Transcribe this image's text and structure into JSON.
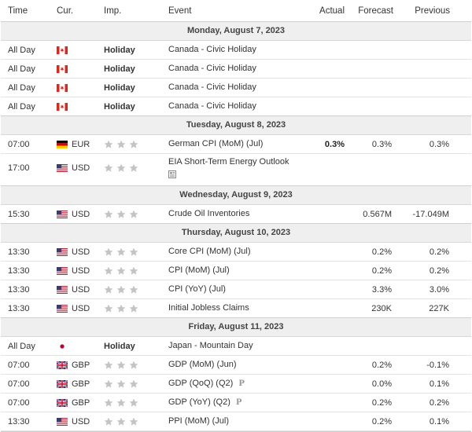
{
  "columns": {
    "time": "Time",
    "currency": "Cur.",
    "importance": "Imp.",
    "event": "Event",
    "actual": "Actual",
    "forecast": "Forecast",
    "previous": "Previous"
  },
  "colors": {
    "star_inactive": "#c4c4c4",
    "day_header_bg": "#efefef",
    "border": "#e3e3e3"
  },
  "days": [
    {
      "label": "Monday, August 7, 2023",
      "rows": [
        {
          "time": "All Day",
          "flag": "ca",
          "code": "",
          "holiday": "Holiday",
          "event": "Canada - Civic Holiday",
          "actual": "",
          "forecast": "",
          "previous": ""
        },
        {
          "time": "All Day",
          "flag": "ca",
          "code": "",
          "holiday": "Holiday",
          "event": "Canada - Civic Holiday",
          "actual": "",
          "forecast": "",
          "previous": ""
        },
        {
          "time": "All Day",
          "flag": "ca",
          "code": "",
          "holiday": "Holiday",
          "event": "Canada - Civic Holiday",
          "actual": "",
          "forecast": "",
          "previous": ""
        },
        {
          "time": "All Day",
          "flag": "ca",
          "code": "",
          "holiday": "Holiday",
          "event": "Canada - Civic Holiday",
          "actual": "",
          "forecast": "",
          "previous": ""
        }
      ]
    },
    {
      "label": "Tuesday, August 8, 2023",
      "rows": [
        {
          "time": "07:00",
          "flag": "de",
          "code": "EUR",
          "stars": 3,
          "event": "German CPI (MoM) (Jul)",
          "actual": "0.3%",
          "forecast": "0.3%",
          "previous": "0.3%"
        },
        {
          "time": "17:00",
          "flag": "us",
          "code": "USD",
          "stars": 3,
          "event": "EIA Short-Term Energy Outlook",
          "doc_icon": "document-icon",
          "tall": true,
          "actual": "",
          "forecast": "",
          "previous": ""
        }
      ]
    },
    {
      "label": "Wednesday, August 9, 2023",
      "rows": [
        {
          "time": "15:30",
          "flag": "us",
          "code": "USD",
          "stars": 3,
          "event": "Crude Oil Inventories",
          "actual": "",
          "forecast": "0.567M",
          "previous": "-17.049M"
        }
      ]
    },
    {
      "label": "Thursday, August 10, 2023",
      "rows": [
        {
          "time": "13:30",
          "flag": "us",
          "code": "USD",
          "stars": 3,
          "event": "Core CPI (MoM) (Jul)",
          "actual": "",
          "forecast": "0.2%",
          "previous": "0.2%"
        },
        {
          "time": "13:30",
          "flag": "us",
          "code": "USD",
          "stars": 3,
          "event": "CPI (MoM) (Jul)",
          "actual": "",
          "forecast": "0.2%",
          "previous": "0.2%"
        },
        {
          "time": "13:30",
          "flag": "us",
          "code": "USD",
          "stars": 3,
          "event": "CPI (YoY) (Jul)",
          "actual": "",
          "forecast": "3.3%",
          "previous": "3.0%"
        },
        {
          "time": "13:30",
          "flag": "us",
          "code": "USD",
          "stars": 3,
          "event": "Initial Jobless Claims",
          "actual": "",
          "forecast": "230K",
          "previous": "227K"
        }
      ]
    },
    {
      "label": "Friday, August 11, 2023",
      "rows": [
        {
          "time": "All Day",
          "flag": "jp",
          "code": "",
          "holiday": "Holiday",
          "event": "Japan - Mountain Day",
          "actual": "",
          "forecast": "",
          "previous": ""
        },
        {
          "time": "07:00",
          "flag": "gb",
          "code": "GBP",
          "stars": 3,
          "event": "GDP (MoM) (Jun)",
          "actual": "",
          "forecast": "0.2%",
          "previous": "-0.1%"
        },
        {
          "time": "07:00",
          "flag": "gb",
          "code": "GBP",
          "stars": 3,
          "event": "GDP (QoQ) (Q2)",
          "prelim": "P",
          "actual": "",
          "forecast": "0.0%",
          "previous": "0.1%"
        },
        {
          "time": "07:00",
          "flag": "gb",
          "code": "GBP",
          "stars": 3,
          "event": "GDP (YoY) (Q2)",
          "prelim": "P",
          "actual": "",
          "forecast": "0.2%",
          "previous": "0.2%"
        },
        {
          "time": "13:30",
          "flag": "us",
          "code": "USD",
          "stars": 3,
          "event": "PPI (MoM) (Jul)",
          "actual": "",
          "forecast": "0.2%",
          "previous": "0.1%"
        }
      ]
    }
  ]
}
